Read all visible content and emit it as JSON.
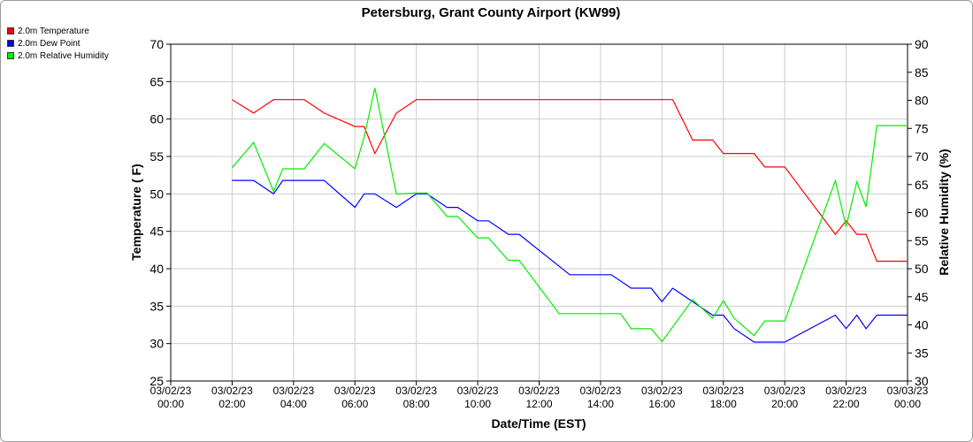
{
  "chart_data": {
    "type": "line",
    "title": "Petersburg, Grant County Airport (KW99)",
    "xlabel": "Date/Time (EST)",
    "ylabel": "Temperature ( F)",
    "y2label": "Relative Humidity (%)",
    "xlim": [
      0,
      24
    ],
    "ylim": [
      25,
      70
    ],
    "y2lim": [
      30,
      90
    ],
    "yticks": [
      25,
      30,
      35,
      40,
      45,
      50,
      55,
      60,
      65,
      70
    ],
    "y2ticks": [
      30,
      35,
      40,
      45,
      50,
      55,
      60,
      65,
      70,
      75,
      80,
      85,
      90
    ],
    "xticks": [
      {
        "x": 0,
        "date": "03/02/23",
        "time": "00:00"
      },
      {
        "x": 2,
        "date": "03/02/23",
        "time": "02:00"
      },
      {
        "x": 4,
        "date": "03/02/23",
        "time": "04:00"
      },
      {
        "x": 6,
        "date": "03/02/23",
        "time": "06:00"
      },
      {
        "x": 8,
        "date": "03/02/23",
        "time": "08:00"
      },
      {
        "x": 10,
        "date": "03/02/23",
        "time": "10:00"
      },
      {
        "x": 12,
        "date": "03/02/23",
        "time": "12:00"
      },
      {
        "x": 14,
        "date": "03/02/23",
        "time": "14:00"
      },
      {
        "x": 16,
        "date": "03/02/23",
        "time": "16:00"
      },
      {
        "x": 18,
        "date": "03/02/23",
        "time": "18:00"
      },
      {
        "x": 20,
        "date": "03/02/23",
        "time": "20:00"
      },
      {
        "x": 22,
        "date": "03/02/23",
        "time": "22:00"
      },
      {
        "x": 24,
        "date": "03/03/23",
        "time": "00:00"
      }
    ],
    "grid": true,
    "legend_position": "top-left",
    "series": [
      {
        "name": "2.0m Temperature",
        "color": "#ff0000",
        "axis": "left",
        "points": [
          [
            2.0,
            62.6
          ],
          [
            2.7,
            60.8
          ],
          [
            3.35,
            62.6
          ],
          [
            4.0,
            62.6
          ],
          [
            4.35,
            62.6
          ],
          [
            5.0,
            60.8
          ],
          [
            6.0,
            59.0
          ],
          [
            6.3,
            59.0
          ],
          [
            6.65,
            55.4
          ],
          [
            7.35,
            60.8
          ],
          [
            8.0,
            62.6
          ],
          [
            16.35,
            62.6
          ],
          [
            17.0,
            57.2
          ],
          [
            17.65,
            57.2
          ],
          [
            18.0,
            55.4
          ],
          [
            19.0,
            55.4
          ],
          [
            19.35,
            53.6
          ],
          [
            20.0,
            53.6
          ],
          [
            21.65,
            44.6
          ],
          [
            22.0,
            46.4
          ],
          [
            22.35,
            44.6
          ],
          [
            22.65,
            44.6
          ],
          [
            23.0,
            41.0
          ],
          [
            24.0,
            41.0
          ]
        ]
      },
      {
        "name": "2.0m Dew Point",
        "color": "#0000ff",
        "axis": "left",
        "points": [
          [
            2.0,
            51.8
          ],
          [
            2.7,
            51.8
          ],
          [
            3.35,
            50.0
          ],
          [
            3.65,
            51.8
          ],
          [
            5.0,
            51.8
          ],
          [
            6.0,
            48.2
          ],
          [
            6.3,
            50.0
          ],
          [
            6.65,
            50.0
          ],
          [
            7.35,
            48.2
          ],
          [
            8.0,
            50.0
          ],
          [
            8.35,
            50.0
          ],
          [
            9.0,
            48.2
          ],
          [
            9.35,
            48.2
          ],
          [
            10.0,
            46.4
          ],
          [
            10.35,
            46.4
          ],
          [
            11.0,
            44.6
          ],
          [
            11.35,
            44.6
          ],
          [
            13.0,
            39.2
          ],
          [
            14.35,
            39.2
          ],
          [
            15.0,
            37.4
          ],
          [
            15.65,
            37.4
          ],
          [
            16.0,
            35.6
          ],
          [
            16.35,
            37.4
          ],
          [
            17.0,
            35.6
          ],
          [
            17.65,
            33.8
          ],
          [
            18.0,
            33.8
          ],
          [
            18.35,
            32.0
          ],
          [
            19.0,
            30.2
          ],
          [
            20.0,
            30.2
          ],
          [
            21.65,
            33.8
          ],
          [
            22.0,
            32.0
          ],
          [
            22.35,
            33.8
          ],
          [
            22.65,
            32.0
          ],
          [
            23.0,
            33.8
          ],
          [
            24.0,
            33.8
          ]
        ]
      },
      {
        "name": "2.0m Relative Humidity",
        "color": "#00ee00",
        "axis": "right",
        "points": [
          [
            2.0,
            68.0
          ],
          [
            2.7,
            72.5
          ],
          [
            3.35,
            63.8
          ],
          [
            3.65,
            67.8
          ],
          [
            4.35,
            67.8
          ],
          [
            5.0,
            72.3
          ],
          [
            6.0,
            67.8
          ],
          [
            6.3,
            73.5
          ],
          [
            6.65,
            82.2
          ],
          [
            7.35,
            63.3
          ],
          [
            8.0,
            63.5
          ],
          [
            8.35,
            63.5
          ],
          [
            9.0,
            59.3
          ],
          [
            9.35,
            59.3
          ],
          [
            10.0,
            55.5
          ],
          [
            10.35,
            55.5
          ],
          [
            11.0,
            51.5
          ],
          [
            11.35,
            51.5
          ],
          [
            12.65,
            42.0
          ],
          [
            14.65,
            42.0
          ],
          [
            15.0,
            39.3
          ],
          [
            15.65,
            39.3
          ],
          [
            16.0,
            37.0
          ],
          [
            17.0,
            44.5
          ],
          [
            17.65,
            41.2
          ],
          [
            18.0,
            44.3
          ],
          [
            18.35,
            41.2
          ],
          [
            19.0,
            38.1
          ],
          [
            19.35,
            40.7
          ],
          [
            20.0,
            40.7
          ],
          [
            21.65,
            65.7
          ],
          [
            22.0,
            57.5
          ],
          [
            22.35,
            65.5
          ],
          [
            22.65,
            61.0
          ],
          [
            23.0,
            75.5
          ],
          [
            24.0,
            75.5
          ]
        ]
      }
    ]
  }
}
